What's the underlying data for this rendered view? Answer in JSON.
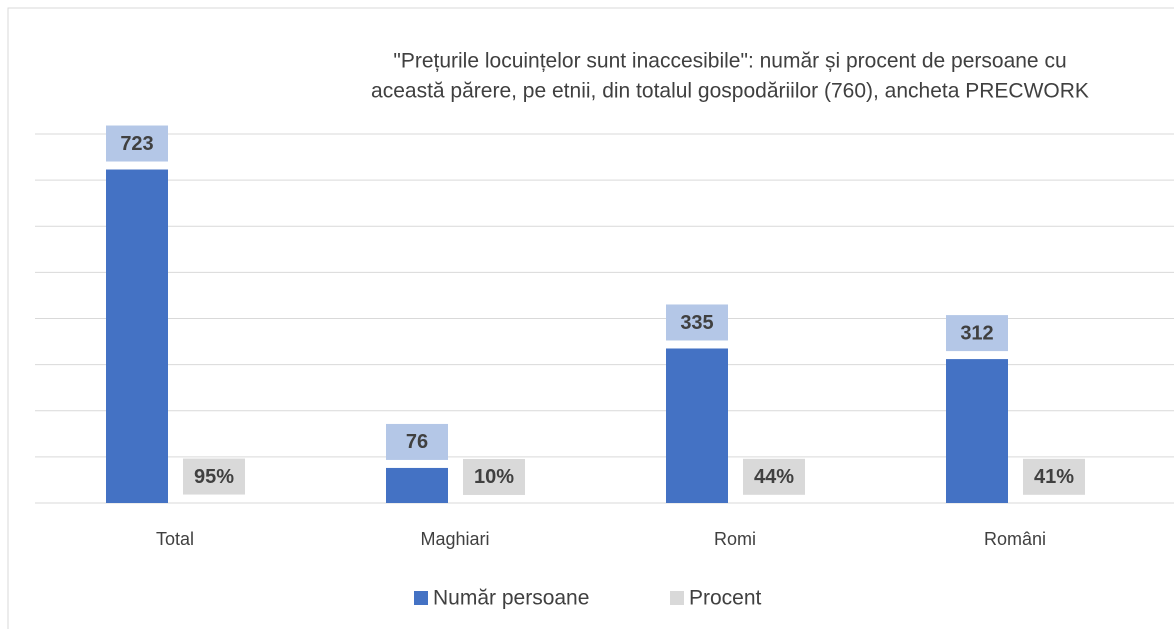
{
  "chart_data": {
    "type": "bar",
    "title": [
      "\"Prețurile locuințelor sunt inaccesibile\":  număr și procent de persoane cu",
      "această părere, pe etnii, din totalul gospodăriilor (760), ancheta PRECWORK"
    ],
    "categories": [
      "Total",
      "Maghiari",
      "Romi",
      "Români"
    ],
    "series": [
      {
        "name": "Număr persoane",
        "color": "#4472c4",
        "label_color": "#b4c7e7",
        "values": [
          723,
          76,
          335,
          312
        ]
      },
      {
        "name": "Procent",
        "color": "#d9d9d9",
        "label_color": "#d9d9d9",
        "values": [
          0.95,
          0.1,
          0.44,
          0.41
        ],
        "value_labels": [
          "95%",
          "10%",
          "44%",
          "41%"
        ]
      }
    ],
    "ylim": [
      0,
      800
    ],
    "yticks": [
      0,
      100,
      200,
      300,
      400,
      500,
      600,
      700,
      800
    ],
    "grid": true,
    "legend": "bottom"
  }
}
